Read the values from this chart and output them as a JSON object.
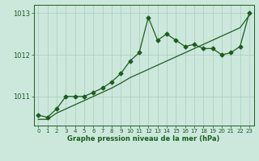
{
  "x": [
    0,
    1,
    2,
    3,
    4,
    5,
    6,
    7,
    8,
    9,
    10,
    11,
    12,
    13,
    14,
    15,
    16,
    17,
    18,
    19,
    20,
    21,
    22,
    23
  ],
  "y_main": [
    1010.55,
    1010.5,
    1010.7,
    1011.0,
    1011.0,
    1011.0,
    1011.1,
    1011.2,
    1011.35,
    1011.55,
    1011.85,
    1012.05,
    1012.9,
    1012.35,
    1012.5,
    1012.35,
    1012.2,
    1012.25,
    1012.15,
    1012.15,
    1012.0,
    1012.05,
    1012.2,
    1013.0
  ],
  "y_trend": [
    1010.45,
    1010.45,
    1010.6,
    1010.7,
    1010.8,
    1010.9,
    1011.0,
    1011.1,
    1011.2,
    1011.32,
    1011.45,
    1011.55,
    1011.65,
    1011.75,
    1011.85,
    1011.95,
    1012.05,
    1012.15,
    1012.25,
    1012.35,
    1012.45,
    1012.55,
    1012.65,
    1012.95
  ],
  "line_color": "#1e5c1e",
  "bg_color": "#cce8dc",
  "grid_color": "#a8ccbc",
  "xlabel": "Graphe pression niveau de la mer (hPa)",
  "ylim": [
    1010.3,
    1013.2
  ],
  "yticks": [
    1011,
    1012,
    1013
  ],
  "xlim": [
    -0.5,
    23.5
  ],
  "xticks": [
    0,
    1,
    2,
    3,
    4,
    5,
    6,
    7,
    8,
    9,
    10,
    11,
    12,
    13,
    14,
    15,
    16,
    17,
    18,
    19,
    20,
    21,
    22,
    23
  ],
  "figwidth": 3.2,
  "figheight": 2.0,
  "dpi": 100
}
